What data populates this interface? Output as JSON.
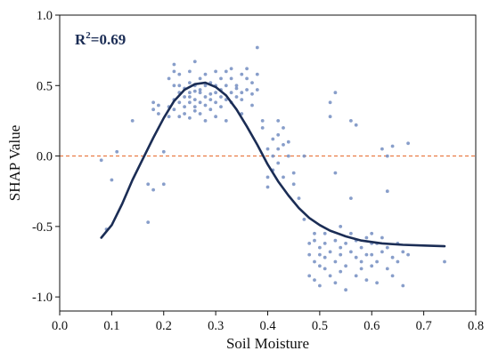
{
  "chart_data": {
    "type": "scatter",
    "xlabel": "Soil Moisture",
    "ylabel": "SHAP Value",
    "xlim": [
      0.0,
      0.8
    ],
    "ylim": [
      -1.1,
      1.0
    ],
    "xticks": [
      "0.0",
      "0.1",
      "0.2",
      "0.3",
      "0.4",
      "0.5",
      "0.6",
      "0.7",
      "0.8"
    ],
    "yticks": [
      "-1.0",
      "-0.5",
      "0.0",
      "0.5",
      "1.0"
    ],
    "grid": false,
    "annotation": {
      "base": "R",
      "sup": "2",
      "rest": "=0.69"
    },
    "colors": {
      "points": "#7b93c4",
      "curve": "#1b2d55",
      "zero_line": "#e8733a",
      "annotation": "#1b2d55",
      "axes": "#111111"
    },
    "zero_line": {
      "y": 0.0,
      "style": "dashed"
    },
    "series": [
      {
        "kind": "points",
        "points": [
          [
            0.08,
            -0.03
          ],
          [
            0.09,
            -0.52
          ],
          [
            0.1,
            -0.17
          ],
          [
            0.11,
            0.03
          ],
          [
            0.14,
            0.25
          ],
          [
            0.17,
            -0.47
          ],
          [
            0.17,
            -0.2
          ],
          [
            0.18,
            -0.24
          ],
          [
            0.18,
            0.33
          ],
          [
            0.18,
            0.38
          ],
          [
            0.19,
            0.3
          ],
          [
            0.19,
            0.36
          ],
          [
            0.2,
            0.03
          ],
          [
            0.2,
            -0.2
          ],
          [
            0.21,
            0.28
          ],
          [
            0.21,
            0.35
          ],
          [
            0.21,
            0.55
          ],
          [
            0.22,
            0.4
          ],
          [
            0.22,
            0.5
          ],
          [
            0.22,
            0.65
          ],
          [
            0.22,
            0.33
          ],
          [
            0.22,
            0.6
          ],
          [
            0.23,
            0.45
          ],
          [
            0.23,
            0.38
          ],
          [
            0.23,
            0.5
          ],
          [
            0.23,
            0.58
          ],
          [
            0.23,
            0.28
          ],
          [
            0.24,
            0.35
          ],
          [
            0.24,
            0.42
          ],
          [
            0.24,
            0.48
          ],
          [
            0.24,
            0.3
          ],
          [
            0.25,
            0.45
          ],
          [
            0.25,
            0.38
          ],
          [
            0.25,
            0.52
          ],
          [
            0.25,
            0.6
          ],
          [
            0.25,
            0.27
          ],
          [
            0.25,
            0.42
          ],
          [
            0.26,
            0.4
          ],
          [
            0.26,
            0.5
          ],
          [
            0.26,
            0.35
          ],
          [
            0.26,
            0.46
          ],
          [
            0.26,
            0.32
          ],
          [
            0.26,
            0.67
          ],
          [
            0.27,
            0.45
          ],
          [
            0.27,
            0.38
          ],
          [
            0.27,
            0.55
          ],
          [
            0.27,
            0.3
          ],
          [
            0.27,
            0.47
          ],
          [
            0.28,
            0.42
          ],
          [
            0.28,
            0.5
          ],
          [
            0.28,
            0.36
          ],
          [
            0.28,
            0.58
          ],
          [
            0.28,
            0.25
          ],
          [
            0.29,
            0.44
          ],
          [
            0.29,
            0.4
          ],
          [
            0.29,
            0.52
          ],
          [
            0.29,
            0.33
          ],
          [
            0.3,
            0.45
          ],
          [
            0.3,
            0.38
          ],
          [
            0.3,
            0.6
          ],
          [
            0.3,
            0.28
          ],
          [
            0.3,
            0.5
          ],
          [
            0.31,
            0.42
          ],
          [
            0.31,
            0.55
          ],
          [
            0.31,
            0.35
          ],
          [
            0.31,
            0.47
          ],
          [
            0.32,
            0.4
          ],
          [
            0.32,
            0.6
          ],
          [
            0.32,
            0.5
          ],
          [
            0.32,
            0.25
          ],
          [
            0.33,
            0.45
          ],
          [
            0.33,
            0.55
          ],
          [
            0.33,
            0.38
          ],
          [
            0.33,
            0.62
          ],
          [
            0.34,
            0.42
          ],
          [
            0.34,
            0.5
          ],
          [
            0.34,
            0.48
          ],
          [
            0.35,
            0.58
          ],
          [
            0.35,
            0.45
          ],
          [
            0.35,
            0.4
          ],
          [
            0.35,
            0.3
          ],
          [
            0.36,
            0.55
          ],
          [
            0.36,
            0.47
          ],
          [
            0.36,
            0.62
          ],
          [
            0.37,
            0.44
          ],
          [
            0.37,
            0.52
          ],
          [
            0.37,
            0.36
          ],
          [
            0.38,
            0.47
          ],
          [
            0.38,
            0.77
          ],
          [
            0.38,
            0.58
          ],
          [
            0.39,
            0.25
          ],
          [
            0.39,
            0.2
          ],
          [
            0.4,
            -0.15
          ],
          [
            0.4,
            -0.22
          ],
          [
            0.4,
            0.05
          ],
          [
            0.41,
            -0.1
          ],
          [
            0.41,
            0.12
          ],
          [
            0.41,
            0.0
          ],
          [
            0.42,
            0.15
          ],
          [
            0.42,
            0.05
          ],
          [
            0.42,
            -0.05
          ],
          [
            0.42,
            0.25
          ],
          [
            0.43,
            -0.15
          ],
          [
            0.43,
            0.2
          ],
          [
            0.43,
            0.08
          ],
          [
            0.44,
            0.1
          ],
          [
            0.44,
            0.0
          ],
          [
            0.45,
            -0.12
          ],
          [
            0.45,
            -0.2
          ],
          [
            0.46,
            -0.3
          ],
          [
            0.47,
            0.0
          ],
          [
            0.47,
            -0.45
          ],
          [
            0.48,
            -0.62
          ],
          [
            0.48,
            -0.7
          ],
          [
            0.48,
            -0.85
          ],
          [
            0.49,
            -0.6
          ],
          [
            0.49,
            -0.75
          ],
          [
            0.49,
            -0.88
          ],
          [
            0.49,
            -0.55
          ],
          [
            0.5,
            -0.65
          ],
          [
            0.5,
            -0.78
          ],
          [
            0.5,
            -0.92
          ],
          [
            0.5,
            -0.7
          ],
          [
            0.51,
            -0.62
          ],
          [
            0.51,
            -0.8
          ],
          [
            0.51,
            -0.55
          ],
          [
            0.51,
            -0.72
          ],
          [
            0.52,
            -0.68
          ],
          [
            0.52,
            -0.85
          ],
          [
            0.52,
            0.38
          ],
          [
            0.52,
            0.28
          ],
          [
            0.53,
            0.45
          ],
          [
            0.53,
            -0.6
          ],
          [
            0.53,
            -0.75
          ],
          [
            0.53,
            -0.9
          ],
          [
            0.53,
            -0.12
          ],
          [
            0.54,
            -0.65
          ],
          [
            0.54,
            -0.82
          ],
          [
            0.54,
            -0.5
          ],
          [
            0.54,
            -0.7
          ],
          [
            0.55,
            -0.62
          ],
          [
            0.55,
            -0.78
          ],
          [
            0.55,
            -0.95
          ],
          [
            0.56,
            -0.68
          ],
          [
            0.56,
            -0.55
          ],
          [
            0.56,
            0.25
          ],
          [
            0.56,
            -0.3
          ],
          [
            0.57,
            -0.72
          ],
          [
            0.57,
            -0.85
          ],
          [
            0.57,
            0.22
          ],
          [
            0.57,
            -0.6
          ],
          [
            0.58,
            -0.65
          ],
          [
            0.58,
            -0.8
          ],
          [
            0.58,
            -0.75
          ],
          [
            0.59,
            -0.7
          ],
          [
            0.59,
            -0.58
          ],
          [
            0.59,
            -0.88
          ],
          [
            0.6,
            -0.62
          ],
          [
            0.6,
            -0.78
          ],
          [
            0.6,
            -0.55
          ],
          [
            0.6,
            -0.7
          ],
          [
            0.61,
            -0.75
          ],
          [
            0.61,
            -0.62
          ],
          [
            0.61,
            -0.9
          ],
          [
            0.62,
            -0.68
          ],
          [
            0.62,
            -0.58
          ],
          [
            0.62,
            0.05
          ],
          [
            0.63,
            -0.8
          ],
          [
            0.63,
            -0.65
          ],
          [
            0.63,
            -0.25
          ],
          [
            0.63,
            0.0
          ],
          [
            0.64,
            -0.72
          ],
          [
            0.64,
            -0.85
          ],
          [
            0.64,
            0.07
          ],
          [
            0.65,
            -0.75
          ],
          [
            0.65,
            -0.62
          ],
          [
            0.66,
            -0.68
          ],
          [
            0.66,
            -0.92
          ],
          [
            0.67,
            0.09
          ],
          [
            0.67,
            -0.7
          ],
          [
            0.74,
            -0.75
          ]
        ]
      },
      {
        "kind": "fit_curve",
        "points": [
          [
            0.08,
            -0.58
          ],
          [
            0.1,
            -0.49
          ],
          [
            0.12,
            -0.34
          ],
          [
            0.14,
            -0.17
          ],
          [
            0.16,
            -0.02
          ],
          [
            0.18,
            0.13
          ],
          [
            0.2,
            0.27
          ],
          [
            0.22,
            0.39
          ],
          [
            0.24,
            0.47
          ],
          [
            0.26,
            0.51
          ],
          [
            0.28,
            0.52
          ],
          [
            0.3,
            0.49
          ],
          [
            0.32,
            0.43
          ],
          [
            0.34,
            0.33
          ],
          [
            0.36,
            0.21
          ],
          [
            0.38,
            0.08
          ],
          [
            0.4,
            -0.06
          ],
          [
            0.42,
            -0.18
          ],
          [
            0.44,
            -0.28
          ],
          [
            0.46,
            -0.37
          ],
          [
            0.48,
            -0.44
          ],
          [
            0.5,
            -0.49
          ],
          [
            0.52,
            -0.53
          ],
          [
            0.55,
            -0.57
          ],
          [
            0.58,
            -0.6
          ],
          [
            0.62,
            -0.62
          ],
          [
            0.66,
            -0.63
          ],
          [
            0.7,
            -0.635
          ],
          [
            0.74,
            -0.64
          ]
        ]
      }
    ]
  }
}
